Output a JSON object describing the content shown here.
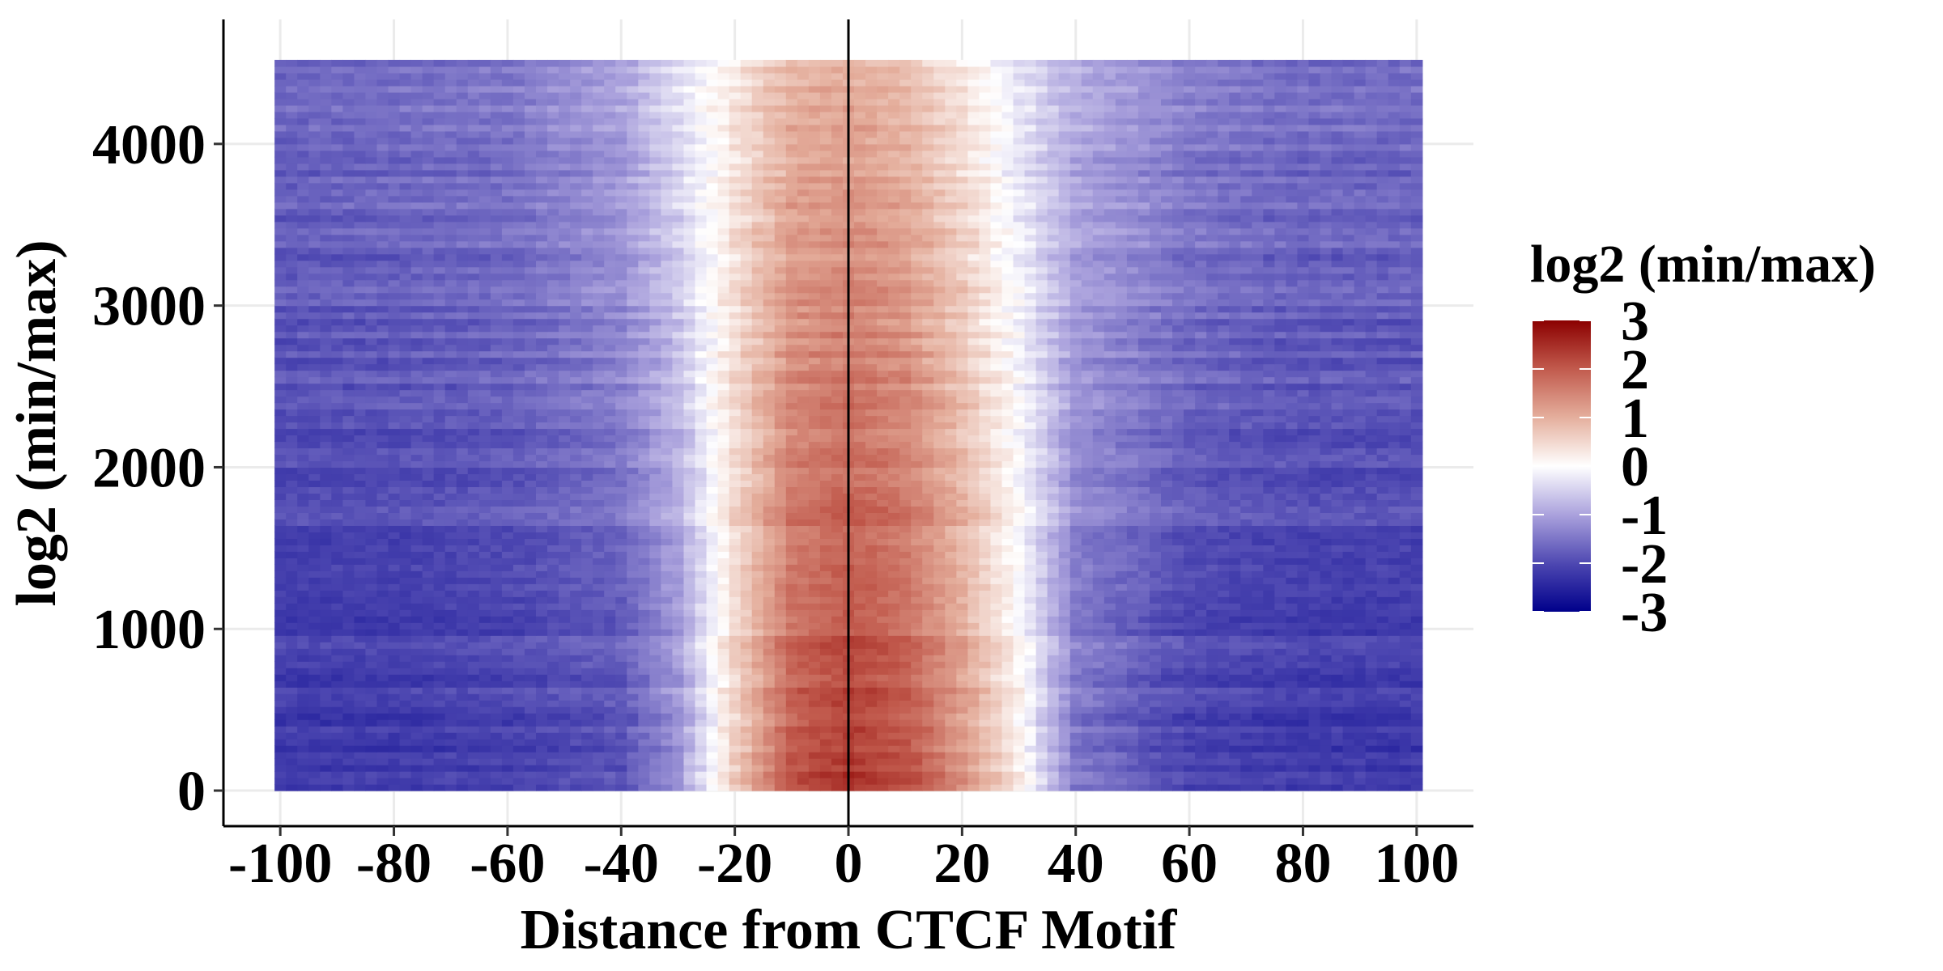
{
  "chart_data": {
    "type": "heatmap",
    "title": "",
    "xlabel": "Distance from CTCF Motif",
    "ylabel": "log2 (min/max)",
    "xlim": [
      -110,
      110
    ],
    "ylim": [
      -220,
      4770
    ],
    "x_range": [
      -100,
      100
    ],
    "y_range": [
      0,
      4520
    ],
    "x_ticks": [
      -100,
      -80,
      -60,
      -40,
      -20,
      0,
      20,
      40,
      60,
      80,
      100
    ],
    "x_tick_labels": [
      "-100",
      "-80",
      "-60",
      "-40",
      "-20",
      "0",
      "20",
      "40",
      "60",
      "80",
      "100"
    ],
    "y_ticks": [
      0,
      1000,
      2000,
      3000,
      4000
    ],
    "y_tick_labels": [
      "0",
      "1000",
      "2000",
      "3000",
      "4000"
    ],
    "reference_line_x": 0,
    "grid": true,
    "legend": {
      "title": "log2 (min/max)",
      "placement": "right",
      "min": -3,
      "max": 3,
      "ticks": [
        3,
        2,
        1,
        0,
        -1,
        -2,
        -3
      ],
      "tick_labels": [
        "3",
        "2",
        "1",
        "0",
        "-1",
        "-2",
        "-3"
      ],
      "colors": {
        "low": "#00008b",
        "mid": "#ffffff",
        "high": "#8b0000"
      }
    },
    "profile_x": [
      -100,
      -80,
      -60,
      -40,
      -30,
      -20,
      -10,
      0,
      10,
      20,
      30,
      40,
      60,
      80,
      100
    ],
    "profile_bottom": [
      -2.2,
      -2.2,
      -2.1,
      -1.9,
      -1.2,
      0.6,
      2.0,
      2.4,
      2.1,
      1.3,
      0.2,
      -1.5,
      -2.1,
      -2.2,
      -2.2
    ],
    "profile_top": [
      -1.6,
      -1.5,
      -1.4,
      -0.9,
      -0.3,
      0.3,
      0.9,
      1.0,
      0.8,
      0.3,
      -0.3,
      -0.8,
      -1.3,
      -1.5,
      -1.5
    ]
  }
}
